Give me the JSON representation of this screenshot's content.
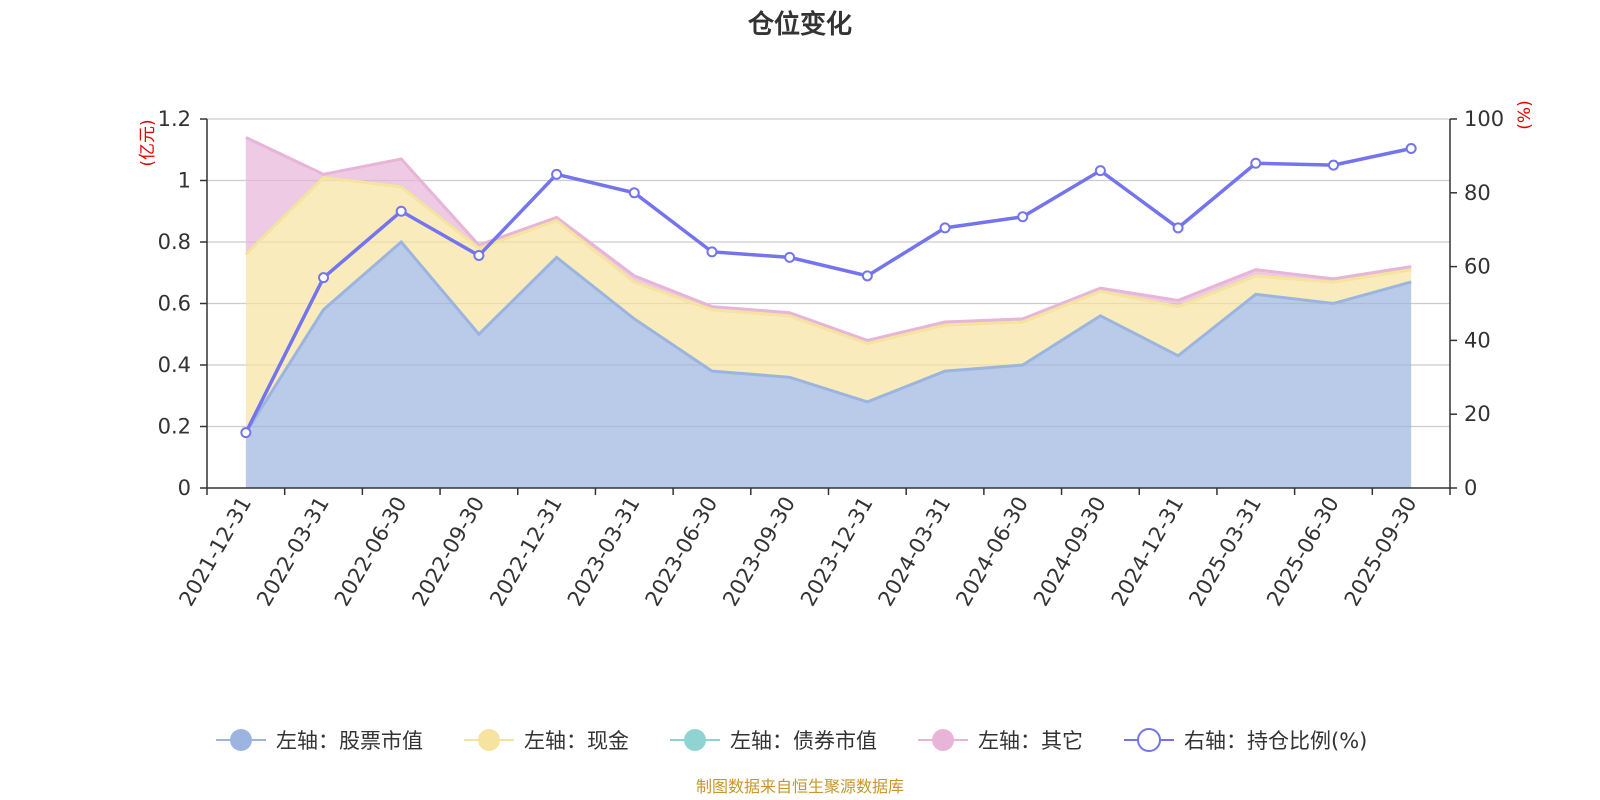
{
  "chart_data": {
    "type": "area",
    "title": "仓位变化",
    "categories": [
      "2021-12-31",
      "2022-03-31",
      "2022-06-30",
      "2022-09-30",
      "2022-12-31",
      "2023-03-31",
      "2023-06-30",
      "2023-09-30",
      "2023-12-31",
      "2024-03-31",
      "2024-06-30",
      "2024-09-30",
      "2024-12-31",
      "2025-03-31",
      "2025-06-30",
      "2025-09-30"
    ],
    "left_axis": {
      "unit": "(亿元)",
      "ylim": [
        0,
        1.2
      ],
      "ticks": [
        "0",
        "0.2",
        "0.4",
        "0.6",
        "0.8",
        "1",
        "1.2"
      ]
    },
    "right_axis": {
      "unit": "(%)",
      "ylim": [
        0,
        100
      ],
      "ticks": [
        "0",
        "20",
        "40",
        "60",
        "80",
        "100"
      ]
    },
    "series": [
      {
        "name": "左轴：股票市值",
        "axis": "left",
        "stack": true,
        "color": "#9bb5e0",
        "values": [
          0.18,
          0.58,
          0.8,
          0.5,
          0.75,
          0.55,
          0.38,
          0.36,
          0.28,
          0.38,
          0.4,
          0.56,
          0.43,
          0.63,
          0.6,
          0.67
        ]
      },
      {
        "name": "左轴：现金",
        "axis": "left",
        "stack": true,
        "color": "#f7e3a0",
        "values": [
          0.58,
          0.43,
          0.18,
          0.28,
          0.12,
          0.12,
          0.2,
          0.2,
          0.19,
          0.15,
          0.14,
          0.08,
          0.16,
          0.06,
          0.07,
          0.04
        ]
      },
      {
        "name": "左轴：债券市值",
        "axis": "left",
        "stack": true,
        "color": "#8fd3d3",
        "values": [
          0,
          0,
          0,
          0,
          0,
          0,
          0,
          0,
          0,
          0,
          0,
          0,
          0,
          0,
          0,
          0
        ]
      },
      {
        "name": "左轴：其它",
        "axis": "left",
        "stack": true,
        "color": "#e8b4d8",
        "values": [
          0.38,
          0.01,
          0.09,
          0.01,
          0.01,
          0.02,
          0.01,
          0.01,
          0.01,
          0.01,
          0.01,
          0.01,
          0.02,
          0.02,
          0.01,
          0.01
        ]
      },
      {
        "name": "右轴：持仓比例(%)",
        "axis": "right",
        "stack": false,
        "color": "#7474ee",
        "values": [
          15,
          57,
          75,
          63,
          85,
          80,
          64,
          62.5,
          57.5,
          70.5,
          73.5,
          86,
          70.5,
          88,
          87.5,
          92
        ]
      }
    ],
    "source": "制图数据来自恒生聚源数据库"
  }
}
